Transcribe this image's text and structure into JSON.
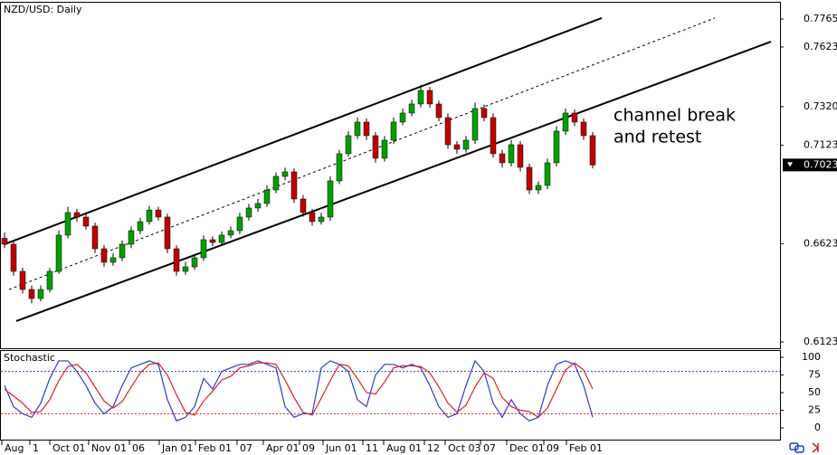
{
  "chart_data": [
    {
      "type": "candlestick",
      "title": "NZD/USD: Daily",
      "open": [
        0.665,
        0.662,
        0.6482,
        0.639,
        0.6344,
        0.639,
        0.6482,
        0.6666,
        0.6781,
        0.6758,
        0.6712,
        0.6597,
        0.6528,
        0.6551,
        0.662,
        0.6689,
        0.6735,
        0.6794,
        0.6758,
        0.6597,
        0.6482,
        0.6505,
        0.6551,
        0.6643,
        0.6629,
        0.6666,
        0.6689,
        0.6758,
        0.6804,
        0.6827,
        0.6896,
        0.6965,
        0.6988,
        0.685,
        0.6781,
        0.6735,
        0.6758,
        0.6942,
        0.708,
        0.7172,
        0.7241,
        0.7172,
        0.7057,
        0.7149,
        0.7241,
        0.7287,
        0.7333,
        0.7402,
        0.7333,
        0.7264,
        0.7126,
        0.7103,
        0.7149,
        0.731,
        0.7264,
        0.708,
        0.7034,
        0.7126,
        0.7011,
        0.6896,
        0.6919,
        0.7034,
        0.7195,
        0.7287,
        0.7241,
        0.7172
      ],
      "high": [
        0.668,
        0.664,
        0.65,
        0.641,
        0.641,
        0.65,
        0.669,
        0.681,
        0.68,
        0.6775,
        0.673,
        0.6615,
        0.6575,
        0.664,
        0.671,
        0.6755,
        0.6815,
        0.681,
        0.6775,
        0.6615,
        0.653,
        0.657,
        0.6665,
        0.666,
        0.6685,
        0.671,
        0.678,
        0.6825,
        0.685,
        0.692,
        0.6985,
        0.701,
        0.7005,
        0.687,
        0.68,
        0.678,
        0.6965,
        0.71,
        0.7195,
        0.7265,
        0.726,
        0.719,
        0.717,
        0.7265,
        0.731,
        0.7355,
        0.743,
        0.742,
        0.735,
        0.7285,
        0.7145,
        0.717,
        0.734,
        0.733,
        0.7285,
        0.71,
        0.715,
        0.7145,
        0.703,
        0.694,
        0.7055,
        0.722,
        0.731,
        0.7305,
        0.726,
        0.719
      ],
      "low": [
        0.66,
        0.646,
        0.637,
        0.632,
        0.633,
        0.6375,
        0.647,
        0.665,
        0.6735,
        0.6695,
        0.6575,
        0.6505,
        0.651,
        0.6535,
        0.66,
        0.667,
        0.672,
        0.674,
        0.6575,
        0.646,
        0.6465,
        0.649,
        0.6535,
        0.661,
        0.6615,
        0.665,
        0.667,
        0.674,
        0.6785,
        0.681,
        0.688,
        0.6945,
        0.683,
        0.676,
        0.6715,
        0.672,
        0.674,
        0.6925,
        0.7065,
        0.7155,
        0.715,
        0.7035,
        0.704,
        0.713,
        0.7225,
        0.727,
        0.7315,
        0.7315,
        0.7245,
        0.7105,
        0.708,
        0.7085,
        0.713,
        0.7245,
        0.706,
        0.701,
        0.7015,
        0.699,
        0.6875,
        0.6875,
        0.69,
        0.7015,
        0.7175,
        0.722,
        0.715,
        0.7005
      ],
      "close": [
        0.662,
        0.6482,
        0.639,
        0.6344,
        0.639,
        0.6482,
        0.6666,
        0.6781,
        0.6758,
        0.6712,
        0.6597,
        0.6528,
        0.6551,
        0.662,
        0.6689,
        0.6735,
        0.6794,
        0.6758,
        0.6597,
        0.6482,
        0.6505,
        0.6551,
        0.6643,
        0.6629,
        0.6666,
        0.6689,
        0.6758,
        0.6804,
        0.6827,
        0.6896,
        0.6965,
        0.6988,
        0.685,
        0.6781,
        0.6735,
        0.6758,
        0.6942,
        0.708,
        0.7172,
        0.7241,
        0.7172,
        0.7057,
        0.7149,
        0.7241,
        0.7287,
        0.7333,
        0.7402,
        0.7333,
        0.7264,
        0.7126,
        0.7103,
        0.7149,
        0.731,
        0.7264,
        0.708,
        0.7034,
        0.7126,
        0.7011,
        0.6896,
        0.6919,
        0.7034,
        0.7195,
        0.7287,
        0.7241,
        0.7172,
        0.7023
      ],
      "up_color": "#00a000",
      "down_color": "#c00000",
      "wick_color": "#000000",
      "xlim": [
        -0.5,
        85.7
      ],
      "ylim": [
        0.6091,
        0.7848
      ],
      "yticks": [
        0.7765,
        0.7623,
        {
          "value": 0.732,
          "label": "0.7320"
        },
        0.7123,
        0.6623,
        0.6123
      ],
      "last_price": 0.7023,
      "lines": [
        {
          "points": [
            [
              0,
              0.662
            ],
            [
              66,
              0.777
            ]
          ],
          "dashed": false
        },
        {
          "points": [
            [
              0.5,
              0.639
            ],
            [
              78.5,
              0.777
            ]
          ],
          "dashed": true
        },
        {
          "points": [
            [
              1.3,
              0.6229
            ],
            [
              84.7,
              0.765
            ]
          ],
          "dashed": false
        }
      ],
      "annotation": [
        "channel break",
        "and retest"
      ],
      "xticks": [
        {
          "value": -0.3,
          "label": "Aug"
        },
        {
          "value": 2.8,
          "label": "1"
        },
        {
          "value": 5,
          "label": "Oct 01"
        },
        {
          "value": 9.3,
          "label": "Nov 01"
        },
        {
          "value": 13.8,
          "label": "06"
        },
        {
          "value": 17.1,
          "label": "Jan 01"
        },
        {
          "value": 21.1,
          "label": "Feb 01"
        },
        {
          "value": 25.7,
          "label": "07"
        },
        {
          "value": 28.6,
          "label": "Apr 01"
        },
        {
          "value": 32.6,
          "label": "09"
        },
        {
          "value": 35.2,
          "label": "Jun 01"
        },
        {
          "value": 39.6,
          "label": "11"
        },
        {
          "value": 41.9,
          "label": "Aug 01"
        },
        {
          "value": 46.4,
          "label": "12"
        },
        {
          "value": 48.7,
          "label": "Oct 03"
        },
        {
          "value": 52.6,
          "label": "07"
        },
        {
          "value": 55.5,
          "label": "Dec 01"
        },
        {
          "value": 59.6,
          "label": "09"
        },
        {
          "value": 62.1,
          "label": "Feb 01"
        }
      ]
    },
    {
      "type": "line",
      "title": "Stochastic",
      "xlim": [
        -0.5,
        85.7
      ],
      "ylim": [
        -18,
        109
      ],
      "yticks": [
        0,
        25,
        50,
        75,
        100
      ],
      "series": [
        {
          "color": "#2a3bd6",
          "values": [
            60,
            30,
            20,
            15,
            35,
            70,
            95,
            95,
            80,
            60,
            35,
            20,
            30,
            60,
            85,
            90,
            95,
            90,
            40,
            10,
            15,
            30,
            70,
            55,
            80,
            85,
            90,
            90,
            95,
            90,
            85,
            30,
            15,
            20,
            20,
            85,
            95,
            90,
            80,
            40,
            30,
            75,
            90,
            90,
            85,
            90,
            85,
            60,
            30,
            15,
            20,
            60,
            95,
            80,
            35,
            15,
            40,
            20,
            10,
            15,
            60,
            90,
            95,
            90,
            60,
            15
          ]
        },
        {
          "color": "#e02020",
          "values": [
            55,
            45,
            35,
            22,
            23,
            40,
            67,
            87,
            90,
            78,
            58,
            38,
            28,
            37,
            58,
            78,
            90,
            92,
            75,
            47,
            22,
            18,
            38,
            52,
            68,
            73,
            85,
            88,
            92,
            92,
            90,
            68,
            43,
            22,
            18,
            42,
            67,
            90,
            88,
            70,
            50,
            48,
            65,
            85,
            88,
            88,
            87,
            78,
            58,
            35,
            22,
            32,
            58,
            78,
            70,
            43,
            30,
            25,
            23,
            15,
            28,
            55,
            82,
            92,
            82,
            55
          ]
        }
      ],
      "levels": [
        {
          "value": 80,
          "color": "#2a3bd6"
        },
        {
          "value": 20,
          "color": "#e02020"
        }
      ]
    }
  ]
}
